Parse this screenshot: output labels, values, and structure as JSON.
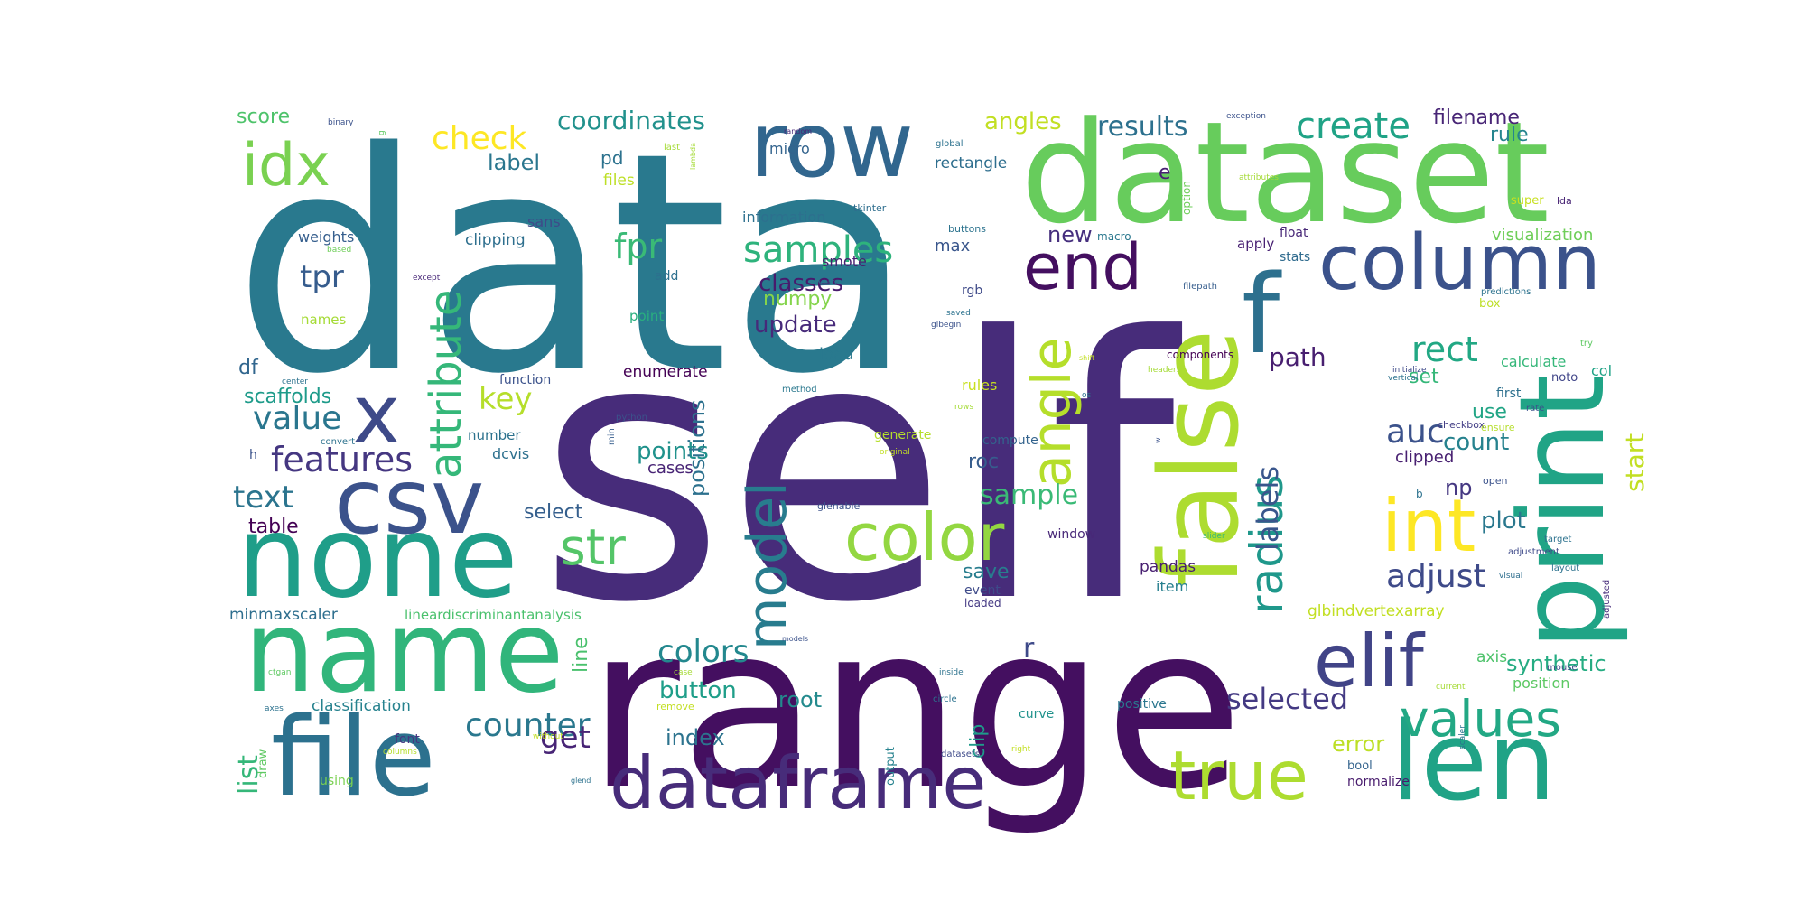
{
  "words": [
    {
      "text": "self",
      "color": "#472c7a"
    },
    {
      "text": "data",
      "color": "#29798e"
    },
    {
      "text": "range",
      "color": "#440f60"
    },
    {
      "text": "dataset",
      "color": "#67cc5c"
    },
    {
      "text": "none",
      "color": "#1f9e89"
    },
    {
      "text": "name",
      "color": "#31b57b"
    },
    {
      "text": "file",
      "color": "#2c718e"
    },
    {
      "text": "false",
      "color": "#addc30"
    },
    {
      "text": "print",
      "color": "#20a486"
    },
    {
      "text": "len",
      "color": "#20a386"
    },
    {
      "text": "row",
      "color": "#31668e"
    },
    {
      "text": "csv",
      "color": "#3b528b"
    },
    {
      "text": "dataframe",
      "color": "#472c7a"
    },
    {
      "text": "true",
      "color": "#addc30"
    },
    {
      "text": "column",
      "color": "#3b528b"
    },
    {
      "text": "f",
      "color": "#2d708e"
    },
    {
      "text": "idx",
      "color": "#7ad151"
    },
    {
      "text": "x",
      "color": "#3e4a89"
    },
    {
      "text": "elif",
      "color": "#414487"
    },
    {
      "text": "end",
      "color": "#440f60"
    },
    {
      "text": "color",
      "color": "#93d741"
    },
    {
      "text": "int",
      "color": "#fde725"
    },
    {
      "text": "model",
      "color": "#287c8e"
    },
    {
      "text": "values",
      "color": "#22a884"
    },
    {
      "text": "angle",
      "color": "#b5de2b"
    },
    {
      "text": "attribute",
      "color": "#35b779"
    },
    {
      "text": "str",
      "color": "#54c568"
    },
    {
      "text": "radius",
      "color": "#1f988b"
    },
    {
      "text": "samples",
      "color": "#2eb37c"
    },
    {
      "text": "features",
      "color": "#453781"
    },
    {
      "text": "counter",
      "color": "#2a788e"
    },
    {
      "text": "get",
      "color": "#482576"
    },
    {
      "text": "create",
      "color": "#20a386"
    },
    {
      "text": "value",
      "color": "#2a768e"
    },
    {
      "text": "fpr",
      "color": "#3aba76"
    },
    {
      "text": "tpr",
      "color": "#365c8d"
    },
    {
      "text": "adjust",
      "color": "#3e4a89"
    },
    {
      "text": "selected",
      "color": "#443a83"
    },
    {
      "text": "colors",
      "color": "#23888e"
    },
    {
      "text": "labels",
      "color": "#39568c"
    },
    {
      "text": "check",
      "color": "#fde725"
    },
    {
      "text": "auc",
      "color": "#3b528b"
    },
    {
      "text": "rect",
      "color": "#22a884"
    },
    {
      "text": "key",
      "color": "#b5de2b"
    },
    {
      "text": "text",
      "color": "#2b748e"
    },
    {
      "text": "coordinates",
      "color": "#21918c"
    },
    {
      "text": "sample",
      "color": "#3aba76"
    },
    {
      "text": "results",
      "color": "#2d718e"
    },
    {
      "text": "path",
      "color": "#481f70"
    },
    {
      "text": "start",
      "color": "#c2df23"
    },
    {
      "text": "list",
      "color": "#35b779"
    },
    {
      "text": "button",
      "color": "#1f9e89"
    },
    {
      "text": "synthetic",
      "color": "#25ac82"
    },
    {
      "text": "r",
      "color": "#3e4a89"
    },
    {
      "text": "angles",
      "color": "#c2df23"
    },
    {
      "text": "classes",
      "color": "#481b6d"
    },
    {
      "text": "update",
      "color": "#472a7a"
    },
    {
      "text": "points",
      "color": "#20928c"
    },
    {
      "text": "count",
      "color": "#26828e"
    },
    {
      "text": "error",
      "color": "#bddf26"
    },
    {
      "text": "positions",
      "color": "#2d718e"
    },
    {
      "text": "index",
      "color": "#2c738e"
    },
    {
      "text": "root",
      "color": "#238a8d"
    },
    {
      "text": "plot",
      "color": "#2a788e"
    },
    {
      "text": "label",
      "color": "#2a768e"
    },
    {
      "text": "new",
      "color": "#462f7e"
    },
    {
      "text": "np",
      "color": "#453882"
    },
    {
      "text": "filename",
      "color": "#482576"
    },
    {
      "text": "numpy",
      "color": "#84d44b"
    },
    {
      "text": "scaffolds",
      "color": "#1e9b8a"
    },
    {
      "text": "table",
      "color": "#440154"
    },
    {
      "text": "use",
      "color": "#21a585"
    },
    {
      "text": "save",
      "color": "#287d8e"
    },
    {
      "text": "set",
      "color": "#35b779"
    },
    {
      "text": "score",
      "color": "#4ec36b"
    },
    {
      "text": "rule",
      "color": "#25858e"
    },
    {
      "text": "roc",
      "color": "#365d8d"
    },
    {
      "text": "line",
      "color": "#4ac16d"
    },
    {
      "text": "clip",
      "color": "#1f9a8a"
    },
    {
      "text": "df",
      "color": "#31668e"
    },
    {
      "text": "e",
      "color": "#482173"
    },
    {
      "text": "pd",
      "color": "#2c728e"
    },
    {
      "text": "select",
      "color": "#355f8d"
    },
    {
      "text": "cases",
      "color": "#482475"
    },
    {
      "text": "clipped",
      "color": "#482071"
    },
    {
      "text": "classification",
      "color": "#26828e"
    },
    {
      "text": "enumerate",
      "color": "#440154"
    },
    {
      "text": "sans",
      "color": "#3e4a89"
    },
    {
      "text": "clipping",
      "color": "#2e6f8e"
    },
    {
      "text": "weights",
      "color": "#355e8d"
    },
    {
      "text": "visualization",
      "color": "#6ece58"
    },
    {
      "text": "pandas",
      "color": "#482071"
    },
    {
      "text": "max",
      "color": "#39568c"
    },
    {
      "text": "information",
      "color": "#2d708e"
    },
    {
      "text": "rectangle",
      "color": "#2e6e8e"
    },
    {
      "text": "micro",
      "color": "#33638d"
    },
    {
      "text": "files",
      "color": "#bddf26"
    },
    {
      "text": "load",
      "color": "#29798e"
    },
    {
      "text": "axis",
      "color": "#4ec36b"
    },
    {
      "text": "position",
      "color": "#5cc863"
    },
    {
      "text": "dcvis",
      "color": "#2d708e"
    },
    {
      "text": "number",
      "color": "#2c728e"
    },
    {
      "text": "minmaxscaler",
      "color": "#2e6e8e"
    },
    {
      "text": "lineardiscriminantanalysis",
      "color": "#4ac16d"
    },
    {
      "text": "calculate",
      "color": "#35b779"
    },
    {
      "text": "col",
      "color": "#20a386"
    },
    {
      "text": "smote",
      "color": "#482071"
    },
    {
      "text": "item",
      "color": "#277f8e"
    },
    {
      "text": "rules",
      "color": "#c8e020"
    },
    {
      "text": "compute",
      "color": "#33638d"
    },
    {
      "text": "window",
      "color": "#482878"
    },
    {
      "text": "function",
      "color": "#3b528b"
    },
    {
      "text": "point",
      "color": "#29af7f"
    },
    {
      "text": "names",
      "color": "#a5db36"
    },
    {
      "text": "normalize",
      "color": "#481b6d"
    },
    {
      "text": "font",
      "color": "#453781"
    },
    {
      "text": "using",
      "color": "#7ad151"
    },
    {
      "text": "curve",
      "color": "#20928c"
    },
    {
      "text": "positive",
      "color": "#2a768e"
    },
    {
      "text": "apply",
      "color": "#482173"
    },
    {
      "text": "stats",
      "color": "#2f6b8e"
    },
    {
      "text": "float",
      "color": "#482878"
    },
    {
      "text": "super",
      "color": "#c8e020"
    },
    {
      "text": "box",
      "color": "#bddf26"
    },
    {
      "text": "first",
      "color": "#2d708e"
    },
    {
      "text": "components",
      "color": "#440154"
    },
    {
      "text": "event",
      "color": "#3e4a89"
    },
    {
      "text": "loaded",
      "color": "#443983"
    },
    {
      "text": "output",
      "color": "#26828e"
    },
    {
      "text": "bool",
      "color": "#33638d"
    },
    {
      "text": "draw",
      "color": "#5ec962"
    },
    {
      "text": "h",
      "color": "#3b528b"
    },
    {
      "text": "rgb",
      "color": "#3e4a89"
    },
    {
      "text": "add",
      "color": "#2d708e"
    },
    {
      "text": "generate",
      "color": "#b5de2b"
    },
    {
      "text": "noto",
      "color": "#404588"
    },
    {
      "text": "checkbox",
      "color": "#433e85"
    },
    {
      "text": "open",
      "color": "#3b528b"
    },
    {
      "text": "b",
      "color": "#2c728e"
    },
    {
      "text": "tkinter",
      "color": "#2e6e8e"
    },
    {
      "text": "buttons",
      "color": "#2c738e"
    },
    {
      "text": "macro",
      "color": "#2a788e"
    },
    {
      "text": "option",
      "color": "#6ece58"
    },
    {
      "text": "filepath",
      "color": "#365d8d"
    },
    {
      "text": "predictions",
      "color": "#2c728e"
    },
    {
      "text": "lda",
      "color": "#482475"
    },
    {
      "text": "ensure",
      "color": "#b5de2b"
    },
    {
      "text": "rate",
      "color": "#3b528b"
    },
    {
      "text": "try",
      "color": "#5ec962"
    },
    {
      "text": "adjustment",
      "color": "#3e4a89"
    },
    {
      "text": "target",
      "color": "#2c728e"
    },
    {
      "text": "layout",
      "color": "#2c728e"
    },
    {
      "text": "adjusted",
      "color": "#472d7b"
    },
    {
      "text": "visual",
      "color": "#2e6e8e"
    },
    {
      "text": "mouse",
      "color": "#3e4a89"
    },
    {
      "text": "current",
      "color": "#a5db36"
    },
    {
      "text": "scaler",
      "color": "#2c728e"
    },
    {
      "text": "slider",
      "color": "#3aba76"
    },
    {
      "text": "glenable",
      "color": "#3b528b"
    },
    {
      "text": "original",
      "color": "#c2df23"
    },
    {
      "text": "min",
      "color": "#365d8d"
    },
    {
      "text": "python",
      "color": "#3b528b"
    },
    {
      "text": "convert",
      "color": "#2c728e"
    },
    {
      "text": "center",
      "color": "#2c728e"
    },
    {
      "text": "method",
      "color": "#2a788e"
    },
    {
      "text": "rows",
      "color": "#a5db36"
    },
    {
      "text": "os",
      "color": "#2c728e"
    },
    {
      "text": "shift",
      "color": "#c2df23"
    },
    {
      "text": "headers",
      "color": "#a5db36"
    },
    {
      "text": "initialize",
      "color": "#3e4a89"
    },
    {
      "text": "vertical",
      "color": "#2c728e"
    },
    {
      "text": "w",
      "color": "#3b528b"
    },
    {
      "text": "saved",
      "color": "#2c728e"
    },
    {
      "text": "glbegin",
      "color": "#3b528b"
    },
    {
      "text": "vertex",
      "color": "#2c728e"
    },
    {
      "text": "except",
      "color": "#482878"
    },
    {
      "text": "based",
      "color": "#6ece58"
    },
    {
      "text": "binary",
      "color": "#3b528b"
    },
    {
      "text": "g",
      "color": "#5ec962"
    },
    {
      "text": "lambda",
      "color": "#a5db36"
    },
    {
      "text": "last",
      "color": "#a5db36"
    },
    {
      "text": "random",
      "color": "#482878"
    },
    {
      "text": "global",
      "color": "#2c728e"
    },
    {
      "text": "exception",
      "color": "#3b528b"
    },
    {
      "text": "attributes",
      "color": "#a5db36"
    },
    {
      "text": "ctgan",
      "color": "#5ec962"
    },
    {
      "text": "axes",
      "color": "#2c728e"
    },
    {
      "text": "without",
      "color": "#c2df23"
    },
    {
      "text": "columns",
      "color": "#b5de2b"
    },
    {
      "text": "glend",
      "color": "#2c728e"
    },
    {
      "text": "remove",
      "color": "#c2df23"
    },
    {
      "text": "case",
      "color": "#a5db36"
    },
    {
      "text": "models",
      "color": "#3b528b"
    },
    {
      "text": "inside",
      "color": "#2c728e"
    },
    {
      "text": "circle",
      "color": "#2c728e"
    },
    {
      "text": "datasets",
      "color": "#3e4a89"
    },
    {
      "text": "right",
      "color": "#c2df23"
    },
    {
      "text": "glbindvertexarray",
      "color": "#c2df23"
    }
  ]
}
